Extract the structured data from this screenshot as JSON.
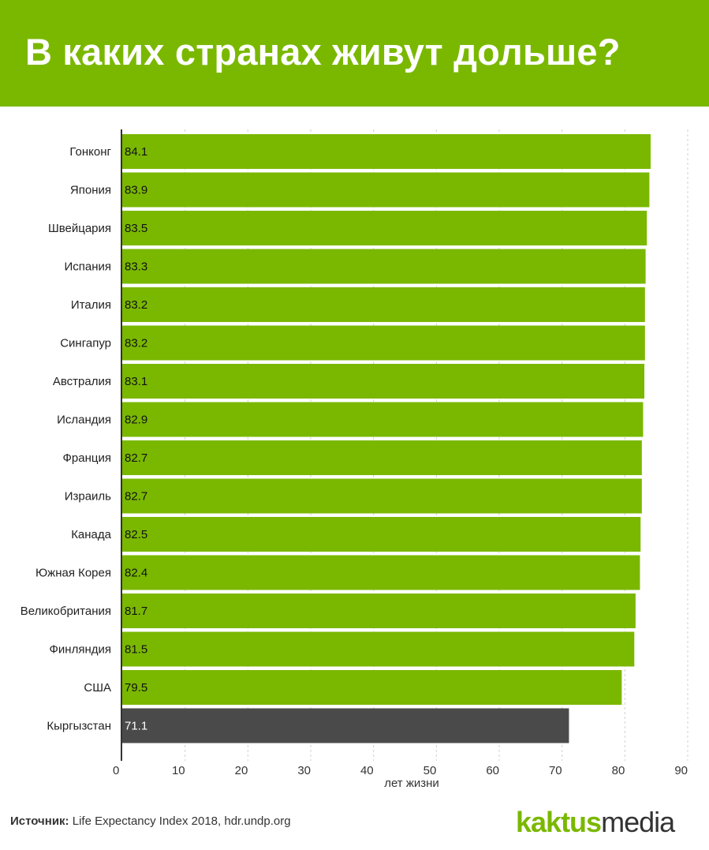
{
  "header": {
    "title": "В каких странах живут дольше?",
    "background": "#7ab800"
  },
  "chart_data": {
    "type": "bar",
    "orientation": "horizontal",
    "categories": [
      "Гонконг",
      "Япония",
      "Швейцария",
      "Испания",
      "Италия",
      "Сингапур",
      "Австралия",
      "Исландия",
      "Франция",
      "Израиль",
      "Канада",
      "Южная Корея",
      "Великобритания",
      "Финляндия",
      "США",
      "Кыргызстан"
    ],
    "values": [
      84.1,
      83.9,
      83.5,
      83.3,
      83.2,
      83.2,
      83.1,
      82.9,
      82.7,
      82.7,
      82.5,
      82.4,
      81.7,
      81.5,
      79.5,
      71.1
    ],
    "value_labels": [
      "84.1",
      "83.9",
      "83.5",
      "83.3",
      "83.2",
      "83.2",
      "83.1",
      "82.9",
      "82.7",
      "82.7",
      "82.5",
      "82.4",
      "81.7",
      "81.5",
      "79.5",
      "71.1"
    ],
    "bar_colors": [
      "#7ab800",
      "#7ab800",
      "#7ab800",
      "#7ab800",
      "#7ab800",
      "#7ab800",
      "#7ab800",
      "#7ab800",
      "#7ab800",
      "#7ab800",
      "#7ab800",
      "#7ab800",
      "#7ab800",
      "#7ab800",
      "#7ab800",
      "#4a4a4a"
    ],
    "highlight_color": "#4a4a4a",
    "bar_color": "#7ab800",
    "title": "",
    "xlabel": "лет жизни",
    "ylabel": "",
    "xlim": [
      0,
      90
    ],
    "xticks": [
      "0",
      "10",
      "20",
      "30",
      "40",
      "50",
      "60",
      "70",
      "80",
      "90"
    ],
    "grid": true,
    "legend": "none"
  },
  "footer": {
    "source_key": "Источник:",
    "source_text": " Life Expectancy Index 2018, hdr.undp.org",
    "logo_part1": "kaktus",
    "logo_part2": "media"
  }
}
